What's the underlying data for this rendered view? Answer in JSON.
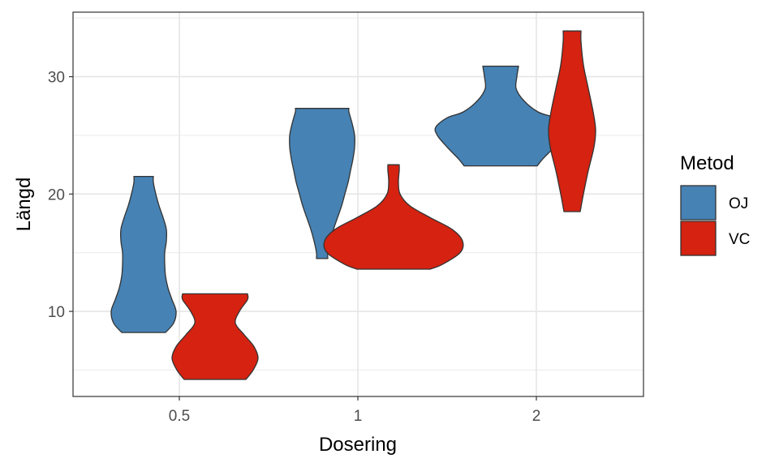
{
  "chart_data": {
    "type": "violin",
    "xlabel": "Dosering",
    "ylabel": "Längd",
    "categories": [
      "0.5",
      "1",
      "2"
    ],
    "y_ticks": [
      10,
      20,
      30
    ],
    "ylim": [
      2.75,
      35.5
    ],
    "grid": true,
    "legend": {
      "title": "Metod",
      "position": "right"
    },
    "series": [
      {
        "name": "OJ",
        "color": "#4682B4",
        "violins": [
          {
            "dose": "0.5",
            "min": 8.2,
            "max": 21.5,
            "density": [
              [
                8.2,
                0.27
              ],
              [
                9.0,
                0.37
              ],
              [
                10.0,
                0.4
              ],
              [
                11.0,
                0.35
              ],
              [
                12.0,
                0.3
              ],
              [
                13.0,
                0.27
              ],
              [
                14.0,
                0.26
              ],
              [
                15.0,
                0.26
              ],
              [
                16.0,
                0.28
              ],
              [
                17.0,
                0.28
              ],
              [
                18.0,
                0.24
              ],
              [
                19.0,
                0.19
              ],
              [
                20.0,
                0.15
              ],
              [
                21.0,
                0.12
              ],
              [
                21.5,
                0.12
              ]
            ]
          },
          {
            "dose": "1",
            "min": 14.5,
            "max": 27.3,
            "density": [
              [
                14.5,
                0.07
              ],
              [
                15.0,
                0.07
              ],
              [
                16.0,
                0.1
              ],
              [
                17.0,
                0.14
              ],
              [
                18.0,
                0.19
              ],
              [
                19.0,
                0.24
              ],
              [
                20.0,
                0.28
              ],
              [
                21.0,
                0.32
              ],
              [
                22.0,
                0.35
              ],
              [
                23.0,
                0.38
              ],
              [
                24.0,
                0.4
              ],
              [
                25.0,
                0.4
              ],
              [
                26.0,
                0.37
              ],
              [
                27.0,
                0.33
              ],
              [
                27.3,
                0.33
              ]
            ]
          },
          {
            "dose": "2",
            "min": 22.4,
            "max": 30.9,
            "density": [
              [
                22.4,
                0.45
              ],
              [
                23.0,
                0.52
              ],
              [
                24.0,
                0.66
              ],
              [
                25.0,
                0.78
              ],
              [
                25.7,
                0.8
              ],
              [
                26.5,
                0.66
              ],
              [
                27.0,
                0.46
              ],
              [
                28.0,
                0.28
              ],
              [
                29.0,
                0.19
              ],
              [
                30.0,
                0.2
              ],
              [
                30.9,
                0.22
              ]
            ]
          }
        ]
      },
      {
        "name": "VC",
        "color": "#D52211",
        "violins": [
          {
            "dose": "0.5",
            "min": 4.2,
            "max": 11.5,
            "density": [
              [
                4.2,
                0.38
              ],
              [
                5.0,
                0.47
              ],
              [
                6.0,
                0.53
              ],
              [
                7.0,
                0.48
              ],
              [
                8.0,
                0.36
              ],
              [
                9.0,
                0.25
              ],
              [
                10.0,
                0.3
              ],
              [
                11.0,
                0.4
              ],
              [
                11.5,
                0.4
              ]
            ]
          },
          {
            "dose": "1",
            "min": 13.6,
            "max": 22.5,
            "density": [
              [
                13.6,
                0.45
              ],
              [
                14.0,
                0.6
              ],
              [
                15.0,
                0.82
              ],
              [
                16.0,
                0.85
              ],
              [
                17.0,
                0.72
              ],
              [
                18.0,
                0.45
              ],
              [
                19.0,
                0.2
              ],
              [
                20.0,
                0.08
              ],
              [
                21.0,
                0.06
              ],
              [
                22.0,
                0.07
              ],
              [
                22.5,
                0.07
              ]
            ]
          },
          {
            "dose": "2",
            "min": 18.5,
            "max": 33.9,
            "density": [
              [
                18.5,
                0.1
              ],
              [
                20.0,
                0.14
              ],
              [
                22.0,
                0.2
              ],
              [
                24.0,
                0.27
              ],
              [
                25.5,
                0.29
              ],
              [
                27.0,
                0.26
              ],
              [
                29.0,
                0.2
              ],
              [
                31.0,
                0.14
              ],
              [
                33.0,
                0.11
              ],
              [
                33.9,
                0.11
              ]
            ]
          }
        ]
      }
    ]
  }
}
